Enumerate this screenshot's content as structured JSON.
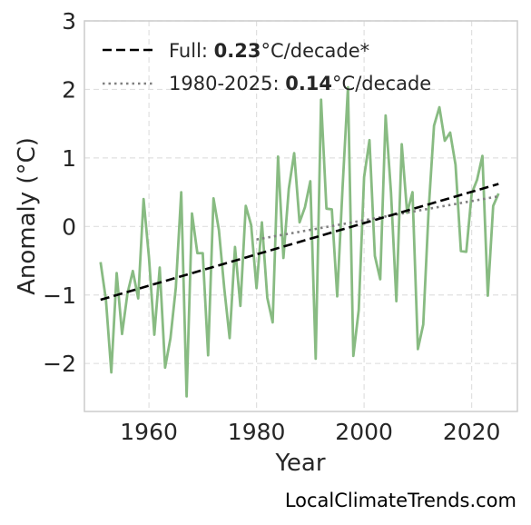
{
  "chart_data": {
    "type": "line",
    "xlabel": "Year",
    "ylabel": "Anomaly (°C)",
    "xlim": [
      1948,
      2028.5
    ],
    "ylim": [
      -2.7,
      3.0
    ],
    "x_ticks": [
      1960,
      1980,
      2000,
      2020
    ],
    "y_ticks": [
      3,
      2,
      1,
      0,
      -1,
      -2
    ],
    "y_tick_labels": [
      "3",
      "2",
      "1",
      "0",
      "−1",
      "−2"
    ],
    "grid": true,
    "legend_position": "top-left",
    "colors": {
      "anomaly": "#88bb82",
      "full_trend": "#000000",
      "recent_trend": "#808080",
      "grid": "#e0e0e0",
      "frame": "#cccccc"
    },
    "series": [
      {
        "style": "solid",
        "x": [
          1951,
          1952,
          1953,
          1954,
          1955,
          1956,
          1957,
          1958,
          1959,
          1960,
          1961,
          1962,
          1963,
          1964,
          1965,
          1966,
          1967,
          1968,
          1969,
          1970,
          1971,
          1972,
          1973,
          1974,
          1975,
          1976,
          1977,
          1978,
          1979,
          1980,
          1981,
          1982,
          1983,
          1984,
          1985,
          1986,
          1987,
          1988,
          1989,
          1990,
          1991,
          1992,
          1993,
          1994,
          1995,
          1996,
          1997,
          1998,
          1999,
          2000,
          2001,
          2002,
          2003,
          2004,
          2005,
          2006,
          2007,
          2008,
          2009,
          2010,
          2011,
          2012,
          2013,
          2014,
          2015,
          2016,
          2017,
          2018,
          2019,
          2020,
          2021,
          2022,
          2023,
          2024,
          2025
        ],
        "y": [
          -0.52,
          -1.07,
          -2.13,
          -0.68,
          -1.57,
          -0.98,
          -0.65,
          -1.05,
          0.4,
          -0.45,
          -1.58,
          -0.6,
          -2.06,
          -1.63,
          -0.89,
          0.5,
          -2.48,
          0.19,
          -0.39,
          -0.39,
          -1.88,
          0.41,
          -0.05,
          -0.9,
          -1.63,
          -0.3,
          -1.16,
          0.3,
          0.02,
          -0.9,
          0.06,
          -1.04,
          -1.4,
          1.02,
          -0.46,
          0.55,
          1.07,
          0.06,
          0.28,
          0.66,
          -1.93,
          1.85,
          0.26,
          0.25,
          -1.02,
          0.57,
          2.03,
          -1.89,
          -1.22,
          0.72,
          1.26,
          -0.43,
          -0.77,
          1.62,
          0.5,
          -1.09,
          1.2,
          0.2,
          0.5,
          -1.79,
          -1.43,
          0.24,
          1.47,
          1.74,
          1.25,
          1.37,
          0.9,
          -0.36,
          -0.37,
          0.48,
          0.68,
          1.03,
          -1.01,
          0.3,
          0.48
        ]
      },
      {
        "name": "Full: 0.23°C/decade*",
        "style": "dashed",
        "x": [
          1951,
          2025
        ],
        "y": [
          -1.07,
          0.62
        ]
      },
      {
        "name": "1980-2025: 0.14°C/decade",
        "style": "dotted",
        "x": [
          1980,
          2025
        ],
        "y": [
          -0.19,
          0.44
        ]
      }
    ],
    "legend": [
      {
        "prefix": "Full: ",
        "value": "0.23",
        "suffix": "°C/decade*",
        "style": "dashed"
      },
      {
        "prefix": "1980-2025: ",
        "value": "0.14",
        "suffix": "°C/decade",
        "style": "dotted"
      }
    ]
  },
  "credit": "LocalClimateTrends.com"
}
